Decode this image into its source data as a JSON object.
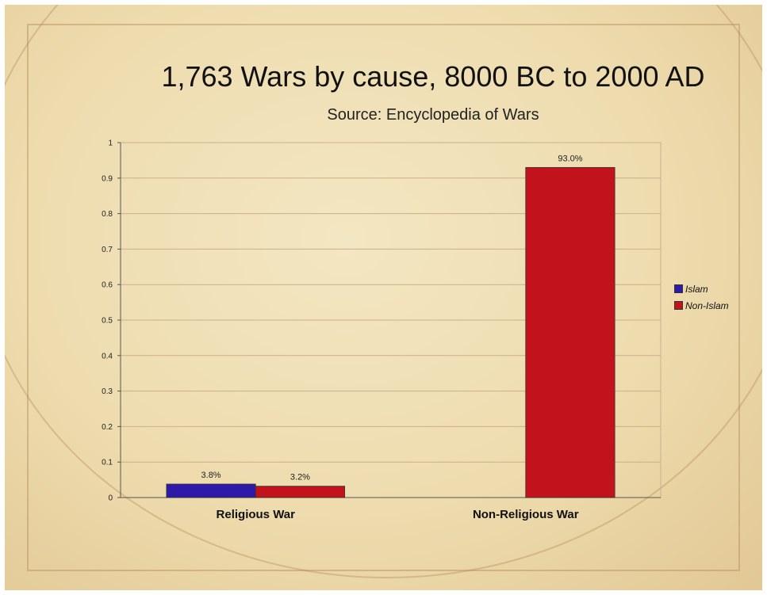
{
  "chart_data": {
    "type": "bar",
    "title": "1,763 Wars by cause, 8000 BC to 2000 AD",
    "subtitle": "Source: Encyclopedia of Wars",
    "categories": [
      "Religious War",
      "Non-Religious War"
    ],
    "series": [
      {
        "name": "Islam",
        "color": "#2e1aa8",
        "values": [
          0.038,
          null
        ],
        "labels": [
          "3.8%",
          ""
        ]
      },
      {
        "name": "Non-Islam",
        "color": "#c2131c",
        "values": [
          0.032,
          0.93
        ],
        "labels": [
          "3.2%",
          "93.0%"
        ]
      }
    ],
    "y_ticks": [
      "0",
      "0.1",
      "0.2",
      "0.3",
      "0.4",
      "0.5",
      "0.6",
      "0.7",
      "0.8",
      "0.9",
      "1"
    ],
    "ylim": [
      0,
      1
    ],
    "grid": true,
    "legend_position": "right"
  }
}
